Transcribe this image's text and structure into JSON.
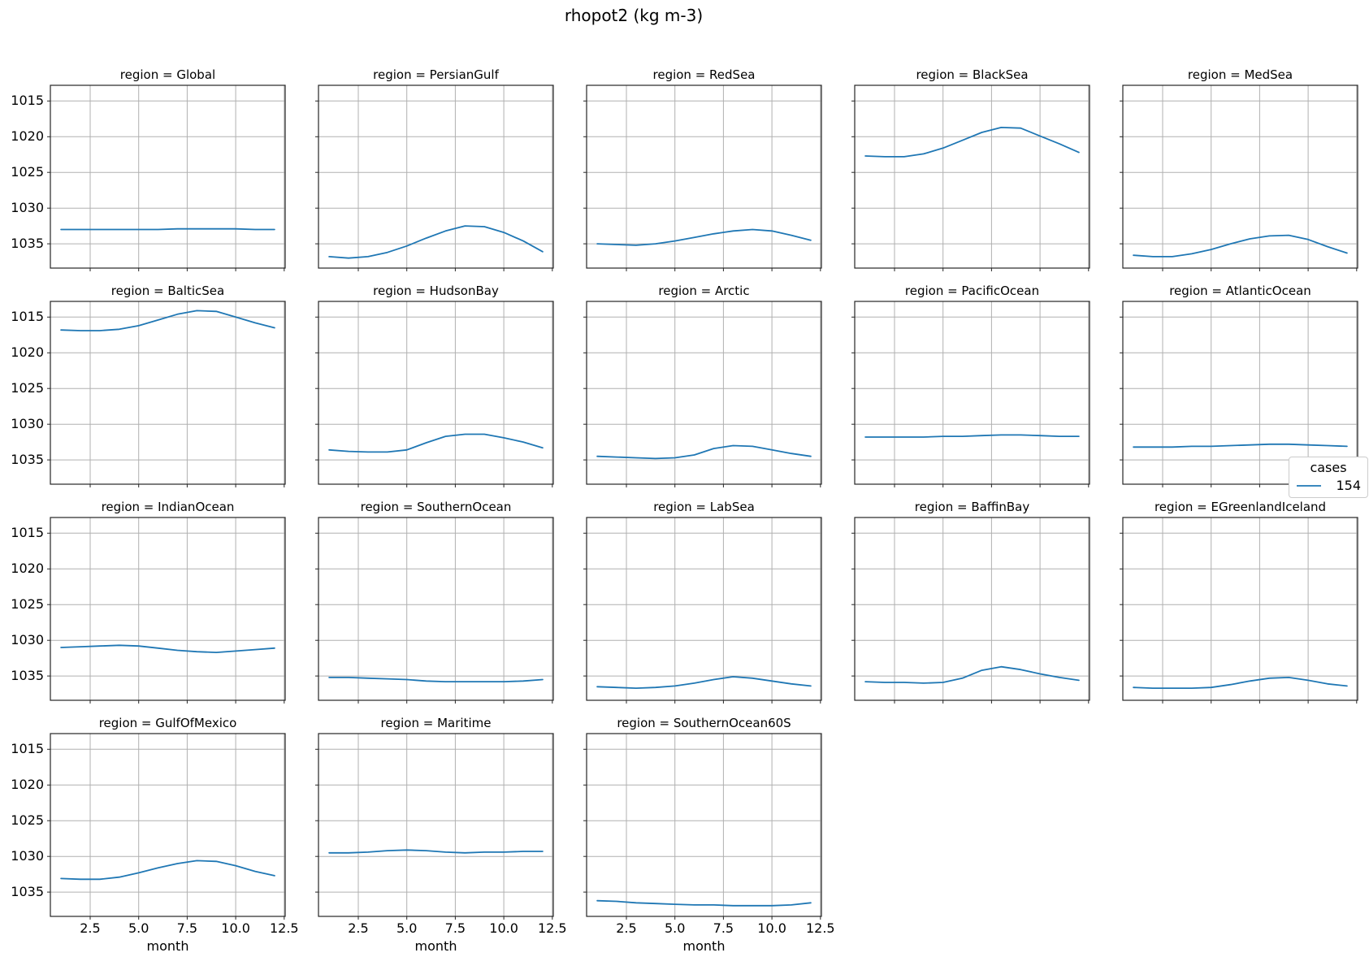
{
  "colors": {
    "line": "#1f77b4",
    "grid": "#b0b0b0",
    "spine": "#262626",
    "legend_border": "#cccccc",
    "background": "#ffffff"
  },
  "chart_data": {
    "type": "line",
    "title": "rhopot2 (kg m-3)",
    "xlabel": "month",
    "ylabel": "",
    "grid": true,
    "y_axis_inverted": true,
    "x": [
      1,
      2,
      3,
      4,
      5,
      6,
      7,
      8,
      9,
      10,
      11,
      12
    ],
    "xlim": [
      0.45,
      12.55
    ],
    "ylim": [
      1038.4,
      1012.8
    ],
    "x_ticks": [
      2.5,
      5.0,
      7.5,
      10.0,
      12.5
    ],
    "x_tick_labels": [
      "2.5",
      "5.0",
      "7.5",
      "10.0",
      "12.5"
    ],
    "y_ticks": [
      1015,
      1020,
      1025,
      1030,
      1035
    ],
    "y_tick_labels": [
      "1015",
      "1020",
      "1025",
      "1030",
      "1035"
    ],
    "legend": {
      "title": "cases",
      "entries": [
        "154"
      ],
      "position": "right-middle"
    },
    "facets": [
      {
        "region": "Global",
        "label": "region = Global",
        "values": [
          1033.0,
          1033.0,
          1033.0,
          1033.0,
          1033.0,
          1033.0,
          1032.9,
          1032.9,
          1032.9,
          1032.9,
          1033.0,
          1033.0
        ]
      },
      {
        "region": "PersianGulf",
        "label": "region = PersianGulf",
        "values": [
          1036.8,
          1037.0,
          1036.8,
          1036.2,
          1035.3,
          1034.2,
          1033.2,
          1032.5,
          1032.6,
          1033.4,
          1034.6,
          1036.1
        ]
      },
      {
        "region": "RedSea",
        "label": "region = RedSea",
        "values": [
          1035.0,
          1035.1,
          1035.2,
          1035.0,
          1034.6,
          1034.1,
          1033.6,
          1033.2,
          1033.0,
          1033.2,
          1033.8,
          1034.5
        ]
      },
      {
        "region": "BlackSea",
        "label": "region = BlackSea",
        "values": [
          1022.7,
          1022.8,
          1022.8,
          1022.4,
          1021.6,
          1020.5,
          1019.4,
          1018.7,
          1018.8,
          1019.9,
          1021.0,
          1022.2
        ]
      },
      {
        "region": "MedSea",
        "label": "region = MedSea",
        "values": [
          1036.6,
          1036.8,
          1036.8,
          1036.4,
          1035.8,
          1035.0,
          1034.3,
          1033.9,
          1033.8,
          1034.4,
          1035.4,
          1036.3
        ]
      },
      {
        "region": "BalticSea",
        "label": "region = BalticSea",
        "values": [
          1016.8,
          1016.9,
          1016.9,
          1016.7,
          1016.2,
          1015.4,
          1014.6,
          1014.1,
          1014.2,
          1015.0,
          1015.8,
          1016.5
        ]
      },
      {
        "region": "HudsonBay",
        "label": "region = HudsonBay",
        "values": [
          1033.6,
          1033.8,
          1033.9,
          1033.9,
          1033.6,
          1032.6,
          1031.7,
          1031.4,
          1031.4,
          1031.9,
          1032.5,
          1033.3
        ]
      },
      {
        "region": "Arctic",
        "label": "region = Arctic",
        "values": [
          1034.5,
          1034.6,
          1034.7,
          1034.8,
          1034.7,
          1034.3,
          1033.4,
          1033.0,
          1033.1,
          1033.6,
          1034.1,
          1034.5
        ]
      },
      {
        "region": "PacificOcean",
        "label": "region = PacificOcean",
        "values": [
          1031.8,
          1031.8,
          1031.8,
          1031.8,
          1031.7,
          1031.7,
          1031.6,
          1031.5,
          1031.5,
          1031.6,
          1031.7,
          1031.7
        ]
      },
      {
        "region": "AtlanticOcean",
        "label": "region = AtlanticOcean",
        "values": [
          1033.2,
          1033.2,
          1033.2,
          1033.1,
          1033.1,
          1033.0,
          1032.9,
          1032.8,
          1032.8,
          1032.9,
          1033.0,
          1033.1
        ]
      },
      {
        "region": "IndianOcean",
        "label": "region = IndianOcean",
        "values": [
          1031.0,
          1030.9,
          1030.8,
          1030.7,
          1030.8,
          1031.1,
          1031.4,
          1031.6,
          1031.7,
          1031.5,
          1031.3,
          1031.1
        ]
      },
      {
        "region": "SouthernOcean",
        "label": "region = SouthernOcean",
        "values": [
          1035.2,
          1035.2,
          1035.3,
          1035.4,
          1035.5,
          1035.7,
          1035.8,
          1035.8,
          1035.8,
          1035.8,
          1035.7,
          1035.5
        ]
      },
      {
        "region": "LabSea",
        "label": "region = LabSea",
        "values": [
          1036.5,
          1036.6,
          1036.7,
          1036.6,
          1036.4,
          1036.0,
          1035.5,
          1035.1,
          1035.3,
          1035.7,
          1036.1,
          1036.4
        ]
      },
      {
        "region": "BaffinBay",
        "label": "region = BaffinBay",
        "values": [
          1035.8,
          1035.9,
          1035.9,
          1036.0,
          1035.9,
          1035.3,
          1034.2,
          1033.7,
          1034.1,
          1034.7,
          1035.2,
          1035.6
        ]
      },
      {
        "region": "EGreenlandIceland",
        "label": "region = EGreenlandIceland",
        "values": [
          1036.6,
          1036.7,
          1036.7,
          1036.7,
          1036.6,
          1036.2,
          1035.7,
          1035.3,
          1035.2,
          1035.6,
          1036.1,
          1036.4
        ]
      },
      {
        "region": "GulfOfMexico",
        "label": "region = GulfOfMexico",
        "values": [
          1033.1,
          1033.2,
          1033.2,
          1032.9,
          1032.3,
          1031.6,
          1031.0,
          1030.6,
          1030.7,
          1031.3,
          1032.1,
          1032.7
        ]
      },
      {
        "region": "Maritime",
        "label": "region = Maritime",
        "values": [
          1029.5,
          1029.5,
          1029.4,
          1029.2,
          1029.1,
          1029.2,
          1029.4,
          1029.5,
          1029.4,
          1029.4,
          1029.3,
          1029.3
        ]
      },
      {
        "region": "SouthernOcean60S",
        "label": "region = SouthernOcean60S",
        "values": [
          1036.2,
          1036.3,
          1036.5,
          1036.6,
          1036.7,
          1036.8,
          1036.8,
          1036.9,
          1036.9,
          1036.9,
          1036.8,
          1036.5
        ]
      }
    ]
  }
}
